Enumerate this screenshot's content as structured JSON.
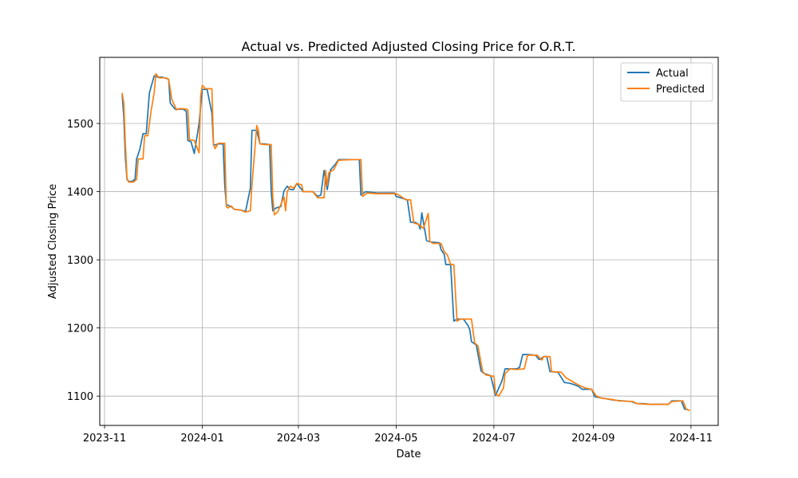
{
  "chart_data": {
    "type": "line",
    "title": "Actual vs. Predicted Adjusted Closing Price for O.R.T.",
    "xlabel": "Date",
    "ylabel": "Adjusted Closing Price",
    "x_axis_type": "date",
    "xlim": [
      "2023-10-29",
      "2024-11-18"
    ],
    "ylim": [
      1057,
      1597
    ],
    "x_ticks": [
      {
        "date": "2023-11-01",
        "label": "2023-11"
      },
      {
        "date": "2024-01-01",
        "label": "2024-01"
      },
      {
        "date": "2024-03-01",
        "label": "2024-03"
      },
      {
        "date": "2024-05-01",
        "label": "2024-05"
      },
      {
        "date": "2024-07-01",
        "label": "2024-07"
      },
      {
        "date": "2024-09-01",
        "label": "2024-09"
      },
      {
        "date": "2024-11-01",
        "label": "2024-11"
      }
    ],
    "y_ticks": [
      1100,
      1200,
      1300,
      1400,
      1500
    ],
    "grid": true,
    "legend_position": "top-right",
    "series": [
      {
        "name": "Actual",
        "color": "#1f77b4",
        "points": [
          [
            "2023-11-12",
            1542
          ],
          [
            "2023-11-13",
            1510
          ],
          [
            "2023-11-14",
            1450
          ],
          [
            "2023-11-15",
            1418
          ],
          [
            "2023-11-16",
            1415
          ],
          [
            "2023-11-18",
            1415
          ],
          [
            "2023-11-20",
            1418
          ],
          [
            "2023-11-21",
            1448
          ],
          [
            "2023-11-23",
            1462
          ],
          [
            "2023-11-25",
            1485
          ],
          [
            "2023-11-27",
            1485
          ],
          [
            "2023-11-29",
            1545
          ],
          [
            "2023-12-02",
            1570
          ],
          [
            "2023-12-04",
            1568
          ],
          [
            "2023-12-07",
            1568
          ],
          [
            "2023-12-11",
            1565
          ],
          [
            "2023-12-12",
            1530
          ],
          [
            "2023-12-15",
            1521
          ],
          [
            "2023-12-20",
            1521
          ],
          [
            "2023-12-22",
            1518
          ],
          [
            "2023-12-23",
            1475
          ],
          [
            "2023-12-25",
            1473
          ],
          [
            "2023-12-27",
            1456
          ],
          [
            "2023-12-30",
            1500
          ],
          [
            "2024-01-01",
            1550
          ],
          [
            "2024-01-04",
            1550
          ],
          [
            "2024-01-07",
            1515
          ],
          [
            "2024-01-08",
            1468
          ],
          [
            "2024-01-11",
            1470
          ],
          [
            "2024-01-14",
            1470
          ],
          [
            "2024-01-15",
            1410
          ],
          [
            "2024-01-16",
            1381
          ],
          [
            "2024-01-19",
            1378
          ],
          [
            "2024-01-21",
            1374
          ],
          [
            "2024-01-25",
            1373
          ],
          [
            "2024-01-28",
            1371
          ],
          [
            "2024-01-31",
            1405
          ],
          [
            "2024-02-01",
            1490
          ],
          [
            "2024-02-04",
            1490
          ],
          [
            "2024-02-06",
            1470
          ],
          [
            "2024-02-09",
            1470
          ],
          [
            "2024-02-12",
            1469
          ],
          [
            "2024-02-13",
            1400
          ],
          [
            "2024-02-14",
            1372
          ],
          [
            "2024-02-16",
            1376
          ],
          [
            "2024-02-19",
            1378
          ],
          [
            "2024-02-21",
            1401
          ],
          [
            "2024-02-23",
            1408
          ],
          [
            "2024-02-25",
            1403
          ],
          [
            "2024-02-27",
            1403
          ],
          [
            "2024-02-29",
            1412
          ],
          [
            "2024-03-04",
            1400
          ],
          [
            "2024-03-10",
            1400
          ],
          [
            "2024-03-13",
            1393
          ],
          [
            "2024-03-15",
            1395
          ],
          [
            "2024-03-17",
            1431
          ],
          [
            "2024-03-19",
            1403
          ],
          [
            "2024-03-21",
            1432
          ],
          [
            "2024-03-24",
            1440
          ],
          [
            "2024-03-26",
            1447
          ],
          [
            "2024-04-03",
            1447
          ],
          [
            "2024-04-08",
            1447
          ],
          [
            "2024-04-09",
            1395
          ],
          [
            "2024-04-12",
            1400
          ],
          [
            "2024-04-19",
            1398
          ],
          [
            "2024-04-30",
            1398
          ],
          [
            "2024-05-01",
            1393
          ],
          [
            "2024-05-08",
            1388
          ],
          [
            "2024-05-10",
            1355
          ],
          [
            "2024-05-13",
            1355
          ],
          [
            "2024-05-15",
            1352
          ],
          [
            "2024-05-16",
            1345
          ],
          [
            "2024-05-17",
            1369
          ],
          [
            "2024-05-18",
            1355
          ],
          [
            "2024-05-20",
            1328
          ],
          [
            "2024-05-23",
            1326
          ],
          [
            "2024-05-28",
            1325
          ],
          [
            "2024-05-29",
            1315
          ],
          [
            "2024-05-31",
            1308
          ],
          [
            "2024-06-01",
            1293
          ],
          [
            "2024-06-04",
            1293
          ],
          [
            "2024-06-06",
            1210
          ],
          [
            "2024-06-08",
            1213
          ],
          [
            "2024-06-12",
            1213
          ],
          [
            "2024-06-15",
            1203
          ],
          [
            "2024-06-16",
            1197
          ],
          [
            "2024-06-17",
            1180
          ],
          [
            "2024-06-20",
            1175
          ],
          [
            "2024-06-23",
            1137
          ],
          [
            "2024-06-25",
            1133
          ],
          [
            "2024-06-29",
            1130
          ],
          [
            "2024-07-02",
            1101
          ],
          [
            "2024-07-06",
            1122
          ],
          [
            "2024-07-08",
            1140
          ],
          [
            "2024-07-12",
            1140
          ],
          [
            "2024-07-15",
            1140
          ],
          [
            "2024-07-17",
            1142
          ],
          [
            "2024-07-19",
            1161
          ],
          [
            "2024-07-22",
            1161
          ],
          [
            "2024-07-27",
            1160
          ],
          [
            "2024-07-29",
            1154
          ],
          [
            "2024-07-30",
            1154
          ],
          [
            "2024-08-01",
            1158
          ],
          [
            "2024-08-03",
            1158
          ],
          [
            "2024-08-05",
            1136
          ],
          [
            "2024-08-10",
            1135
          ],
          [
            "2024-08-14",
            1120
          ],
          [
            "2024-08-17",
            1119
          ],
          [
            "2024-08-20",
            1117
          ],
          [
            "2024-08-23",
            1114
          ],
          [
            "2024-08-25",
            1110
          ],
          [
            "2024-08-28",
            1110
          ],
          [
            "2024-08-31",
            1110
          ],
          [
            "2024-09-02",
            1099
          ],
          [
            "2024-09-07",
            1097
          ],
          [
            "2024-09-14",
            1094
          ],
          [
            "2024-09-25",
            1092
          ],
          [
            "2024-09-28",
            1089
          ],
          [
            "2024-10-02",
            1089
          ],
          [
            "2024-10-07",
            1088
          ],
          [
            "2024-10-12",
            1088
          ],
          [
            "2024-10-18",
            1088
          ],
          [
            "2024-10-20",
            1093
          ],
          [
            "2024-10-26",
            1093
          ],
          [
            "2024-10-28",
            1081
          ],
          [
            "2024-10-30",
            1080
          ]
        ]
      },
      {
        "name": "Predicted",
        "color": "#ff7f0e",
        "points": [
          [
            "2023-11-12",
            1544
          ],
          [
            "2023-11-13",
            1530
          ],
          [
            "2023-11-14",
            1470
          ],
          [
            "2023-11-15",
            1420
          ],
          [
            "2023-11-16",
            1414
          ],
          [
            "2023-11-19",
            1414
          ],
          [
            "2023-11-21",
            1418
          ],
          [
            "2023-11-22",
            1448
          ],
          [
            "2023-11-25",
            1448
          ],
          [
            "2023-11-26",
            1482
          ],
          [
            "2023-11-28",
            1482
          ],
          [
            "2023-11-30",
            1518
          ],
          [
            "2023-12-02",
            1545
          ],
          [
            "2023-12-03",
            1573
          ],
          [
            "2023-12-05",
            1567
          ],
          [
            "2023-12-09",
            1567
          ],
          [
            "2023-12-11",
            1565
          ],
          [
            "2023-12-13",
            1535
          ],
          [
            "2023-12-16",
            1520
          ],
          [
            "2023-12-18",
            1522
          ],
          [
            "2023-12-22",
            1521
          ],
          [
            "2023-12-23",
            1520
          ],
          [
            "2023-12-24",
            1476
          ],
          [
            "2023-12-27",
            1475
          ],
          [
            "2023-12-30",
            1457
          ],
          [
            "2023-12-31",
            1540
          ],
          [
            "2024-01-01",
            1556
          ],
          [
            "2024-01-03",
            1551
          ],
          [
            "2024-01-07",
            1551
          ],
          [
            "2024-01-08",
            1470
          ],
          [
            "2024-01-09",
            1463
          ],
          [
            "2024-01-11",
            1471
          ],
          [
            "2024-01-15",
            1471
          ],
          [
            "2024-01-16",
            1378
          ],
          [
            "2024-01-17",
            1376
          ],
          [
            "2024-01-19",
            1379
          ],
          [
            "2024-01-21",
            1374
          ],
          [
            "2024-01-25",
            1373
          ],
          [
            "2024-01-28",
            1370
          ],
          [
            "2024-01-31",
            1372
          ],
          [
            "2024-02-01",
            1410
          ],
          [
            "2024-02-04",
            1497
          ],
          [
            "2024-02-05",
            1490
          ],
          [
            "2024-02-06",
            1470
          ],
          [
            "2024-02-09",
            1469
          ],
          [
            "2024-02-13",
            1469
          ],
          [
            "2024-02-14",
            1392
          ],
          [
            "2024-02-15",
            1366
          ],
          [
            "2024-02-17",
            1370
          ],
          [
            "2024-02-21",
            1392
          ],
          [
            "2024-02-22",
            1372
          ],
          [
            "2024-02-23",
            1400
          ],
          [
            "2024-02-25",
            1408
          ],
          [
            "2024-02-27",
            1405
          ],
          [
            "2024-02-29",
            1412
          ],
          [
            "2024-03-03",
            1410
          ],
          [
            "2024-03-04",
            1400
          ],
          [
            "2024-03-10",
            1400
          ],
          [
            "2024-03-13",
            1391
          ],
          [
            "2024-03-17",
            1391
          ],
          [
            "2024-03-18",
            1431
          ],
          [
            "2024-03-19",
            1409
          ],
          [
            "2024-03-20",
            1428
          ],
          [
            "2024-03-23",
            1432
          ],
          [
            "2024-03-26",
            1446
          ],
          [
            "2024-04-04",
            1447
          ],
          [
            "2024-04-09",
            1447
          ],
          [
            "2024-04-10",
            1393
          ],
          [
            "2024-04-13",
            1398
          ],
          [
            "2024-04-19",
            1397
          ],
          [
            "2024-05-01",
            1397
          ],
          [
            "2024-05-04",
            1393
          ],
          [
            "2024-05-07",
            1388
          ],
          [
            "2024-05-10",
            1388
          ],
          [
            "2024-05-12",
            1354
          ],
          [
            "2024-05-15",
            1352
          ],
          [
            "2024-05-18",
            1346
          ],
          [
            "2024-05-21",
            1368
          ],
          [
            "2024-05-22",
            1327
          ],
          [
            "2024-05-24",
            1324
          ],
          [
            "2024-05-29",
            1324
          ],
          [
            "2024-05-31",
            1312
          ],
          [
            "2024-06-02",
            1307
          ],
          [
            "2024-06-04",
            1293
          ],
          [
            "2024-06-06",
            1293
          ],
          [
            "2024-06-08",
            1210
          ],
          [
            "2024-06-10",
            1213
          ],
          [
            "2024-06-17",
            1213
          ],
          [
            "2024-06-19",
            1178
          ],
          [
            "2024-06-21",
            1174
          ],
          [
            "2024-06-24",
            1136
          ],
          [
            "2024-06-26",
            1131
          ],
          [
            "2024-07-01",
            1129
          ],
          [
            "2024-07-02",
            1104
          ],
          [
            "2024-07-04",
            1100
          ],
          [
            "2024-07-07",
            1112
          ],
          [
            "2024-07-08",
            1133
          ],
          [
            "2024-07-11",
            1140
          ],
          [
            "2024-07-15",
            1139
          ],
          [
            "2024-07-20",
            1140
          ],
          [
            "2024-07-22",
            1160
          ],
          [
            "2024-07-28",
            1160
          ],
          [
            "2024-07-31",
            1153
          ],
          [
            "2024-08-01",
            1158
          ],
          [
            "2024-08-05",
            1158
          ],
          [
            "2024-08-06",
            1136
          ],
          [
            "2024-08-12",
            1135
          ],
          [
            "2024-08-15",
            1127
          ],
          [
            "2024-08-20",
            1120
          ],
          [
            "2024-08-23",
            1116
          ],
          [
            "2024-08-27",
            1112
          ],
          [
            "2024-08-31",
            1110
          ],
          [
            "2024-09-03",
            1100
          ],
          [
            "2024-09-06",
            1097
          ],
          [
            "2024-09-13",
            1095
          ],
          [
            "2024-09-17",
            1093
          ],
          [
            "2024-09-26",
            1092
          ],
          [
            "2024-09-28",
            1089
          ],
          [
            "2024-10-05",
            1088
          ],
          [
            "2024-10-18",
            1088
          ],
          [
            "2024-10-20",
            1092
          ],
          [
            "2024-10-27",
            1093
          ],
          [
            "2024-10-29",
            1081
          ],
          [
            "2024-10-31",
            1079
          ]
        ]
      }
    ]
  }
}
